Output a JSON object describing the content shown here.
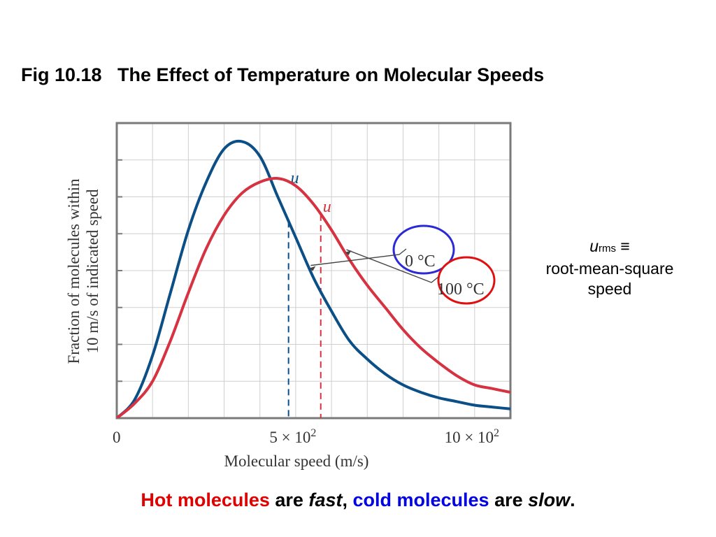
{
  "title": "Fig 10.18   The Effect of Temperature on Molecular Speeds",
  "colors": {
    "series_cold": "#0b4f86",
    "series_hot": "#d63241",
    "grid": "#cfcfcf",
    "frame": "#7a7a7a",
    "circle_cold": "#2a2ad6",
    "circle_hot": "#e01010"
  },
  "chart_data": {
    "type": "line",
    "xlabel": "Molecular speed (m/s)",
    "ylabel": [
      "Fraction of molecules within",
      "10 m/s of indicated speed"
    ],
    "xlim": [
      0,
      1100
    ],
    "ylim": [
      0,
      8
    ],
    "x_ticks": [
      {
        "value": 0,
        "label": "0"
      },
      {
        "value": 500,
        "label": "5 × 10",
        "sup": "2"
      },
      {
        "value": 1000,
        "label": "10 × 10",
        "sup": "2"
      }
    ],
    "grid": true,
    "series": [
      {
        "name": "0 °C",
        "color": "#0b4f86",
        "x": [
          0,
          50,
          100,
          150,
          200,
          250,
          300,
          350,
          400,
          450,
          500,
          550,
          600,
          650,
          700,
          750,
          800,
          850,
          900,
          950,
          1000,
          1050,
          1100
        ],
        "y": [
          0.0,
          0.5,
          1.7,
          3.4,
          5.1,
          6.4,
          7.3,
          7.5,
          7.1,
          6.0,
          4.9,
          3.8,
          2.9,
          2.1,
          1.6,
          1.2,
          0.9,
          0.7,
          0.55,
          0.45,
          0.35,
          0.3,
          0.25
        ],
        "rms_speed": 480,
        "rms_label": "u"
      },
      {
        "name": "100 °C",
        "color": "#d63241",
        "x": [
          0,
          50,
          100,
          150,
          200,
          250,
          300,
          350,
          400,
          450,
          500,
          550,
          600,
          650,
          700,
          750,
          800,
          850,
          900,
          950,
          1000,
          1050,
          1100
        ],
        "y": [
          0.0,
          0.4,
          1.0,
          2.1,
          3.4,
          4.6,
          5.5,
          6.1,
          6.4,
          6.5,
          6.3,
          5.8,
          5.1,
          4.3,
          3.6,
          3.0,
          2.4,
          1.9,
          1.5,
          1.15,
          0.9,
          0.8,
          0.7
        ],
        "rms_speed": 570,
        "rms_label": "u"
      }
    ]
  },
  "side_note": {
    "symbol": "u",
    "subscript": "rms",
    "equiv": " ≡",
    "line2": "root-mean-square",
    "line3": "speed"
  },
  "caption": {
    "hot": "Hot molecules",
    "are1": " are ",
    "fast": "fast",
    "comma": ", ",
    "cold": "cold molecules",
    "are2": " are ",
    "slow": "slow",
    "period": "."
  }
}
